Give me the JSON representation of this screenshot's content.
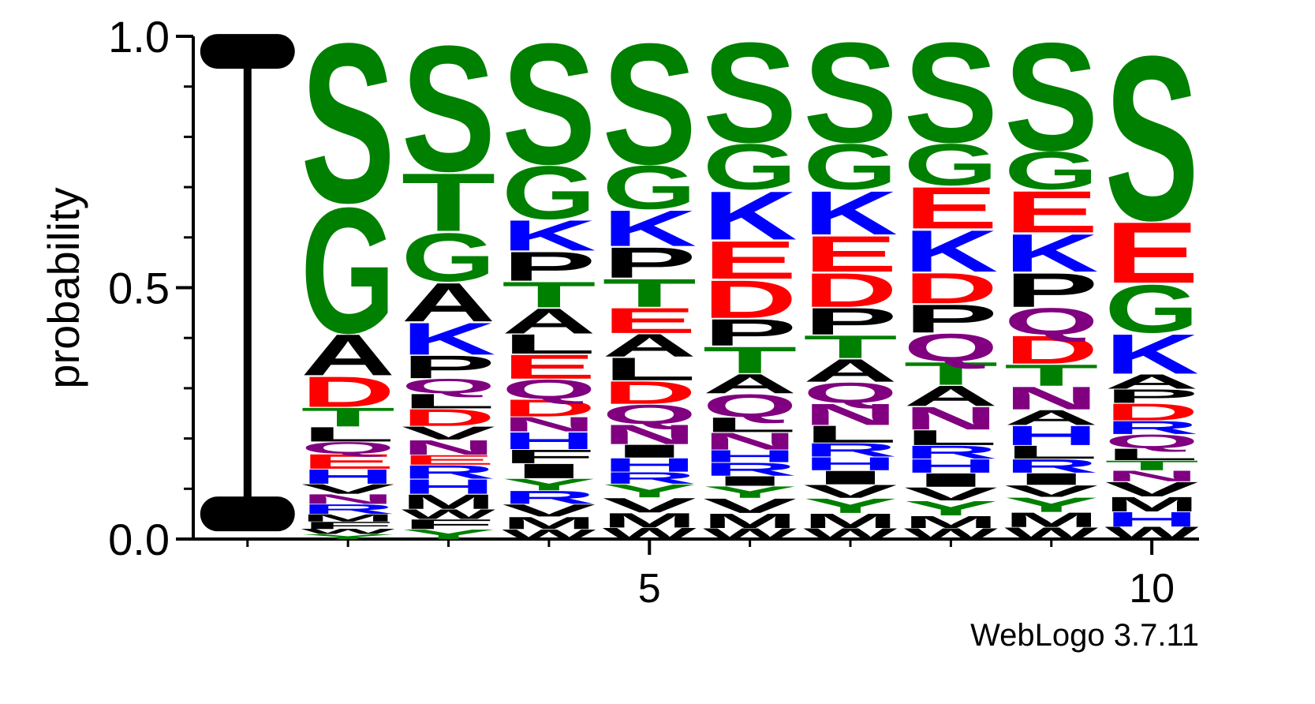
{
  "chart_data": {
    "type": "logo",
    "y_label": "probability",
    "footer": "WebLogo 3.7.11",
    "xlim": [
      0.46,
      10.47
    ],
    "xticks": [
      5,
      10
    ],
    "xminorticks": [
      1,
      2,
      3,
      4,
      5,
      6,
      7,
      8,
      9,
      10
    ],
    "ylim": [
      0,
      1
    ],
    "yticks": [
      {
        "value": 0,
        "label": "0.0"
      },
      0.5,
      {
        "value": 1,
        "label": "1.0"
      }
    ],
    "yminorticks": [
      0.1,
      0.2,
      0.3,
      0.4,
      0.6,
      0.7,
      0.8,
      0.9
    ],
    "colors": {
      "S": "#008000",
      "G": "#008000",
      "T": "#008000",
      "Y": "#008000",
      "C": "#008000",
      "K": "#0000ff",
      "R": "#0000ff",
      "H": "#0000ff",
      "D": "#ff0000",
      "E": "#ff0000",
      "Q": "#800080",
      "N": "#800080",
      "A": "#000000",
      "P": "#000000",
      "L": "#000000",
      "V": "#000000",
      "M": "#000000",
      "F": "#000000",
      "W": "#000000",
      "I": "#000000"
    },
    "error_bar": {
      "position": 1,
      "low": 0.05,
      "high": 0.97
    },
    "positions": [
      {
        "position": 2,
        "letters": [
          {
            "letter": "S",
            "p": 0.33
          },
          {
            "letter": "G",
            "p": 0.26
          },
          {
            "letter": "A",
            "p": 0.085
          },
          {
            "letter": "D",
            "p": 0.063
          },
          {
            "letter": "T",
            "p": 0.039
          },
          {
            "letter": "L",
            "p": 0.03
          },
          {
            "letter": "Q",
            "p": 0.024
          },
          {
            "letter": "E",
            "p": 0.03
          },
          {
            "letter": "H",
            "p": 0.03
          },
          {
            "letter": "V",
            "p": 0.02
          },
          {
            "letter": "N",
            "p": 0.02
          },
          {
            "letter": "R",
            "p": 0.02
          },
          {
            "letter": "M",
            "p": 0.015
          },
          {
            "letter": "F",
            "p": 0.015
          },
          {
            "letter": "W",
            "p": 0.01
          },
          {
            "letter": "Y",
            "p": 0.01
          }
        ]
      },
      {
        "position": 3,
        "letters": [
          {
            "letter": "S",
            "p": 0.26
          },
          {
            "letter": "T",
            "p": 0.12
          },
          {
            "letter": "G",
            "p": 0.1
          },
          {
            "letter": "A",
            "p": 0.08
          },
          {
            "letter": "K",
            "p": 0.066
          },
          {
            "letter": "P",
            "p": 0.047
          },
          {
            "letter": "Q",
            "p": 0.03
          },
          {
            "letter": "L",
            "p": 0.03
          },
          {
            "letter": "D",
            "p": 0.035
          },
          {
            "letter": "V",
            "p": 0.027
          },
          {
            "letter": "N",
            "p": 0.03
          },
          {
            "letter": "E",
            "p": 0.02
          },
          {
            "letter": "R",
            "p": 0.028
          },
          {
            "letter": "H",
            "p": 0.03
          },
          {
            "letter": "M",
            "p": 0.03
          },
          {
            "letter": "W",
            "p": 0.02
          },
          {
            "letter": "F",
            "p": 0.02
          },
          {
            "letter": "Y",
            "p": 0.02
          }
        ]
      },
      {
        "position": 4,
        "letters": [
          {
            "letter": "S",
            "p": 0.25
          },
          {
            "letter": "G",
            "p": 0.11
          },
          {
            "letter": "K",
            "p": 0.063
          },
          {
            "letter": "P",
            "p": 0.06
          },
          {
            "letter": "T",
            "p": 0.053
          },
          {
            "letter": "A",
            "p": 0.052
          },
          {
            "letter": "L",
            "p": 0.04
          },
          {
            "letter": "E",
            "p": 0.05
          },
          {
            "letter": "Q",
            "p": 0.04
          },
          {
            "letter": "D",
            "p": 0.035
          },
          {
            "letter": "N",
            "p": 0.03
          },
          {
            "letter": "H",
            "p": 0.035
          },
          {
            "letter": "F",
            "p": 0.028
          },
          {
            "letter": "I",
            "p": 0.03
          },
          {
            "letter": "Y",
            "p": 0.024
          },
          {
            "letter": "R",
            "p": 0.027
          },
          {
            "letter": "V",
            "p": 0.025
          },
          {
            "letter": "M",
            "p": 0.025
          },
          {
            "letter": "W",
            "p": 0.02
          }
        ]
      },
      {
        "position": 5,
        "letters": [
          {
            "letter": "S",
            "p": 0.25
          },
          {
            "letter": "G",
            "p": 0.09
          },
          {
            "letter": "K",
            "p": 0.074
          },
          {
            "letter": "P",
            "p": 0.063
          },
          {
            "letter": "T",
            "p": 0.058
          },
          {
            "letter": "E",
            "p": 0.052
          },
          {
            "letter": "A",
            "p": 0.047
          },
          {
            "letter": "L",
            "p": 0.047
          },
          {
            "letter": "D",
            "p": 0.047
          },
          {
            "letter": "Q",
            "p": 0.04
          },
          {
            "letter": "N",
            "p": 0.04
          },
          {
            "letter": "I",
            "p": 0.027
          },
          {
            "letter": "H",
            "p": 0.028
          },
          {
            "letter": "R",
            "p": 0.024
          },
          {
            "letter": "Y",
            "p": 0.027
          },
          {
            "letter": "V",
            "p": 0.03
          },
          {
            "letter": "M",
            "p": 0.03
          },
          {
            "letter": "W",
            "p": 0.023
          }
        ]
      },
      {
        "position": 6,
        "letters": [
          {
            "letter": "S",
            "p": 0.207
          },
          {
            "letter": "G",
            "p": 0.094
          },
          {
            "letter": "K",
            "p": 0.1
          },
          {
            "letter": "E",
            "p": 0.078
          },
          {
            "letter": "D",
            "p": 0.078
          },
          {
            "letter": "P",
            "p": 0.055
          },
          {
            "letter": "T",
            "p": 0.055
          },
          {
            "letter": "A",
            "p": 0.04
          },
          {
            "letter": "Q",
            "p": 0.047
          },
          {
            "letter": "L",
            "p": 0.03
          },
          {
            "letter": "N",
            "p": 0.035
          },
          {
            "letter": "H",
            "p": 0.025
          },
          {
            "letter": "R",
            "p": 0.027
          },
          {
            "letter": "I",
            "p": 0.02
          },
          {
            "letter": "Y",
            "p": 0.024
          },
          {
            "letter": "V",
            "p": 0.03
          },
          {
            "letter": "M",
            "p": 0.03
          },
          {
            "letter": "W",
            "p": 0.022
          }
        ]
      },
      {
        "position": 7,
        "letters": [
          {
            "letter": "S",
            "p": 0.207
          },
          {
            "letter": "G",
            "p": 0.094
          },
          {
            "letter": "K",
            "p": 0.09
          },
          {
            "letter": "E",
            "p": 0.074
          },
          {
            "letter": "D",
            "p": 0.07
          },
          {
            "letter": "P",
            "p": 0.055
          },
          {
            "letter": "T",
            "p": 0.047
          },
          {
            "letter": "A",
            "p": 0.047
          },
          {
            "letter": "Q",
            "p": 0.042
          },
          {
            "letter": "N",
            "p": 0.044
          },
          {
            "letter": "L",
            "p": 0.035
          },
          {
            "letter": "R",
            "p": 0.028
          },
          {
            "letter": "H",
            "p": 0.027
          },
          {
            "letter": "I",
            "p": 0.028
          },
          {
            "letter": "V",
            "p": 0.027
          },
          {
            "letter": "Y",
            "p": 0.03
          },
          {
            "letter": "M",
            "p": 0.03
          },
          {
            "letter": "W",
            "p": 0.022
          }
        ]
      },
      {
        "position": 8,
        "letters": [
          {
            "letter": "S",
            "p": 0.207
          },
          {
            "letter": "G",
            "p": 0.086
          },
          {
            "letter": "E",
            "p": 0.086
          },
          {
            "letter": "K",
            "p": 0.086
          },
          {
            "letter": "D",
            "p": 0.063
          },
          {
            "letter": "P",
            "p": 0.058
          },
          {
            "letter": "Q",
            "p": 0.057
          },
          {
            "letter": "T",
            "p": 0.047
          },
          {
            "letter": "A",
            "p": 0.042
          },
          {
            "letter": "N",
            "p": 0.047
          },
          {
            "letter": "L",
            "p": 0.031
          },
          {
            "letter": "R",
            "p": 0.027
          },
          {
            "letter": "H",
            "p": 0.028
          },
          {
            "letter": "I",
            "p": 0.028
          },
          {
            "letter": "V",
            "p": 0.027
          },
          {
            "letter": "Y",
            "p": 0.03
          },
          {
            "letter": "M",
            "p": 0.025
          },
          {
            "letter": "W",
            "p": 0.022
          }
        ]
      },
      {
        "position": 9,
        "letters": [
          {
            "letter": "S",
            "p": 0.223
          },
          {
            "letter": "G",
            "p": 0.078
          },
          {
            "letter": "E",
            "p": 0.086
          },
          {
            "letter": "K",
            "p": 0.078
          },
          {
            "letter": "P",
            "p": 0.07
          },
          {
            "letter": "Q",
            "p": 0.055
          },
          {
            "letter": "D",
            "p": 0.058
          },
          {
            "letter": "T",
            "p": 0.044
          },
          {
            "letter": "N",
            "p": 0.047
          },
          {
            "letter": "A",
            "p": 0.031
          },
          {
            "letter": "H",
            "p": 0.04
          },
          {
            "letter": "L",
            "p": 0.027
          },
          {
            "letter": "R",
            "p": 0.028
          },
          {
            "letter": "I",
            "p": 0.024
          },
          {
            "letter": "V",
            "p": 0.024
          },
          {
            "letter": "Y",
            "p": 0.03
          },
          {
            "letter": "M",
            "p": 0.03
          },
          {
            "letter": "W",
            "p": 0.024
          }
        ]
      },
      {
        "position": 10,
        "letters": [
          {
            "letter": "S",
            "p": 0.34
          },
          {
            "letter": "E",
            "p": 0.126
          },
          {
            "letter": "G",
            "p": 0.099
          },
          {
            "letter": "K",
            "p": 0.082
          },
          {
            "letter": "A",
            "p": 0.03
          },
          {
            "letter": "P",
            "p": 0.028
          },
          {
            "letter": "D",
            "p": 0.035
          },
          {
            "letter": "R",
            "p": 0.027
          },
          {
            "letter": "Q",
            "p": 0.028
          },
          {
            "letter": "L",
            "p": 0.024
          },
          {
            "letter": "T",
            "p": 0.02
          },
          {
            "letter": "N",
            "p": 0.022
          },
          {
            "letter": "V",
            "p": 0.03
          },
          {
            "letter": "M",
            "p": 0.03
          },
          {
            "letter": "H",
            "p": 0.03
          },
          {
            "letter": "W",
            "p": 0.025
          }
        ]
      }
    ]
  }
}
